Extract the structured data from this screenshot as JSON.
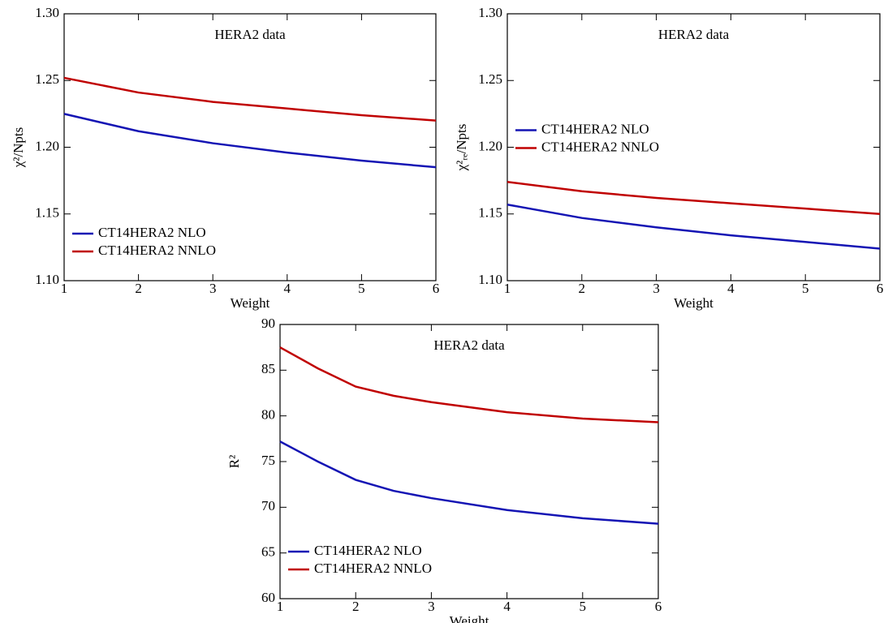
{
  "chart_data": [
    {
      "type": "line",
      "annotation": "HERA2 data",
      "xlabel": "Weight",
      "ylabel": "χ²/Npts",
      "x": [
        1,
        2,
        3,
        4,
        5,
        6
      ],
      "xlim": [
        1,
        6
      ],
      "xticks": [
        1,
        2,
        3,
        4,
        5,
        6
      ],
      "ylim": [
        1.1,
        1.3
      ],
      "yticks": [
        {
          "value": 1.1,
          "label": "1.10"
        },
        1.15,
        {
          "value": 1.2,
          "label": "1.20"
        },
        1.25,
        {
          "value": 1.3,
          "label": "1.30"
        }
      ],
      "legend": "lower left",
      "series": [
        {
          "name": "CT14HERA2 NLO",
          "color": "#1414b4",
          "values": [
            1.225,
            1.212,
            1.203,
            1.196,
            1.19,
            1.185
          ]
        },
        {
          "name": "CT14HERA2 NNLO",
          "color": "#c00000",
          "values": [
            1.252,
            1.241,
            1.234,
            1.229,
            1.224,
            1.22
          ]
        }
      ]
    },
    {
      "type": "line",
      "annotation": "HERA2 data",
      "xlabel": "Weight",
      "ylabel": "χ²ᵣₑ/Npts",
      "x": [
        1,
        2,
        3,
        4,
        5,
        6
      ],
      "xlim": [
        1,
        6
      ],
      "xticks": [
        1,
        2,
        3,
        4,
        5,
        6
      ],
      "ylim": [
        1.1,
        1.3
      ],
      "yticks": [
        {
          "value": 1.1,
          "label": "1.10"
        },
        1.15,
        {
          "value": 1.2,
          "label": "1.20"
        },
        1.25,
        {
          "value": 1.3,
          "label": "1.30"
        }
      ],
      "legend": "center left",
      "series": [
        {
          "name": "CT14HERA2 NLO",
          "color": "#1414b4",
          "values": [
            1.157,
            1.147,
            1.14,
            1.134,
            1.129,
            1.124
          ]
        },
        {
          "name": "CT14HERA2 NNLO",
          "color": "#c00000",
          "values": [
            1.174,
            1.167,
            1.162,
            1.158,
            1.154,
            1.15
          ]
        }
      ]
    },
    {
      "type": "line",
      "annotation": "HERA2 data",
      "xlabel": "Weight",
      "ylabel": "R²",
      "x": [
        1,
        1.5,
        2,
        2.5,
        3,
        4,
        5,
        6
      ],
      "xlim": [
        1,
        6
      ],
      "xticks": [
        1,
        2,
        3,
        4,
        5,
        6
      ],
      "ylim": [
        60,
        90
      ],
      "yticks": [
        60,
        65,
        70,
        75,
        80,
        85,
        90
      ],
      "legend": "lower left",
      "series": [
        {
          "name": "CT14HERA2 NLO",
          "color": "#1414b4",
          "values": [
            77.2,
            75.0,
            73.0,
            71.8,
            71.0,
            69.7,
            68.8,
            68.2
          ]
        },
        {
          "name": "CT14HERA2 NNLO",
          "color": "#c00000",
          "values": [
            87.5,
            85.2,
            83.2,
            82.2,
            81.5,
            80.4,
            79.7,
            79.3
          ]
        }
      ]
    }
  ]
}
